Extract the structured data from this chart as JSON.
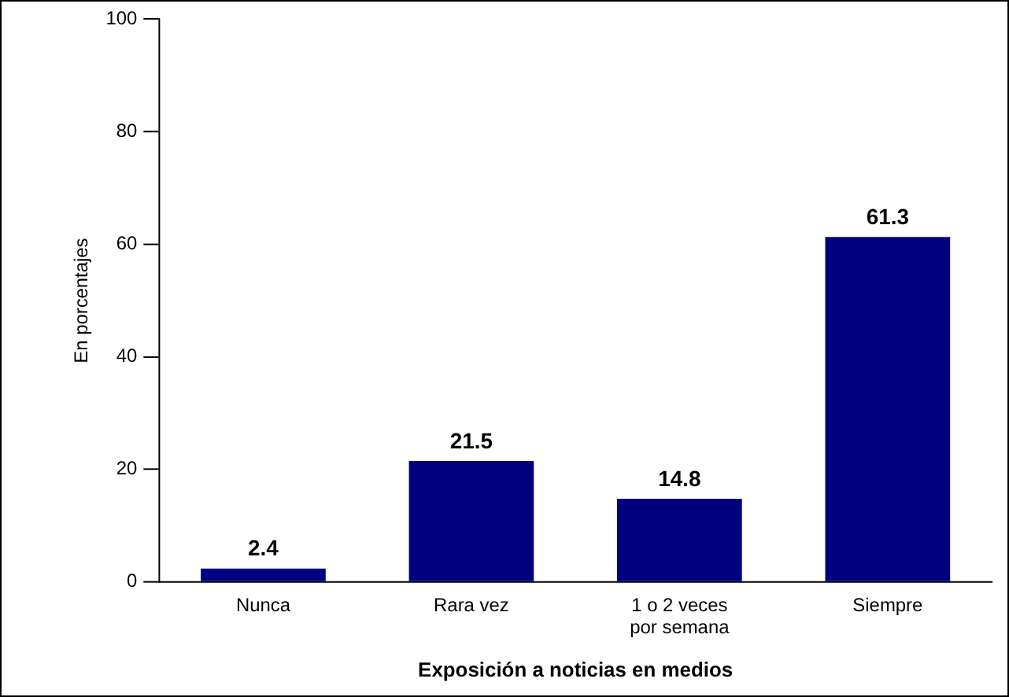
{
  "chart_data": {
    "type": "bar",
    "xlabel": "Exposición a noticias en medios",
    "ylabel": "En porcentajes",
    "categories": [
      "Nunca",
      "Rara vez",
      "1 o 2 veces por semana",
      "Siempre"
    ],
    "values": [
      2.4,
      21.5,
      14.8,
      61.3
    ],
    "color": "#000080",
    "ylim": [
      0,
      100
    ],
    "yticks": [
      0,
      20,
      40,
      60,
      80,
      100
    ],
    "grid": false,
    "data_labels": true
  }
}
